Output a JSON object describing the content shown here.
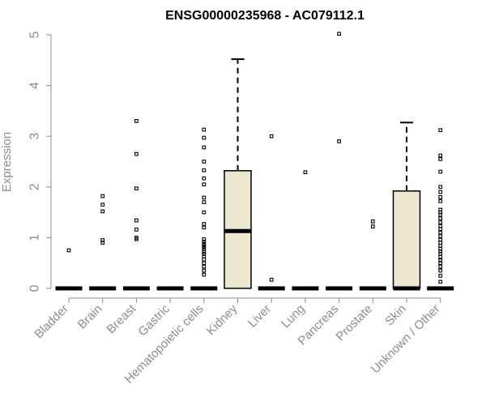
{
  "chart_data": {
    "type": "box",
    "title": "ENSG00000235968 - AC079112.1",
    "xlabel": "",
    "ylabel": "Expression",
    "ylim": [
      0,
      5
    ],
    "yticks": [
      0,
      1,
      2,
      3,
      4,
      5
    ],
    "categories": [
      "Bladder",
      "Brain",
      "Breast",
      "Gastric",
      "Hematopoietic cells",
      "Kidney",
      "Liver",
      "Lung",
      "Pancreas",
      "Prostate",
      "Skin",
      "Unknown / Other"
    ],
    "boxes": [
      {
        "min": 0,
        "q1": 0,
        "median": 0,
        "q3": 0,
        "max": 0,
        "outliers": [
          0.75
        ]
      },
      {
        "min": 0,
        "q1": 0,
        "median": 0,
        "q3": 0,
        "max": 0,
        "outliers": [
          0.9,
          0.95,
          1.52,
          1.65,
          1.82
        ]
      },
      {
        "min": 0,
        "q1": 0,
        "median": 0,
        "q3": 0,
        "max": 0,
        "outliers": [
          0.97,
          1.0,
          1.16,
          1.34,
          1.97,
          2.65,
          3.3
        ]
      },
      {
        "min": 0,
        "q1": 0,
        "median": 0,
        "q3": 0,
        "max": 0,
        "outliers": []
      },
      {
        "min": 0,
        "q1": 0,
        "median": 0,
        "q3": 0,
        "max": 0,
        "outliers": [
          0.27,
          0.35,
          0.43,
          0.5,
          0.57,
          0.63,
          0.68,
          0.72,
          0.77,
          0.81,
          0.85,
          0.88,
          0.92,
          0.97,
          1.2,
          1.27,
          1.5,
          1.7,
          1.79,
          2.05,
          2.17,
          2.33,
          2.5,
          2.78,
          2.97,
          3.13
        ]
      },
      {
        "min": 0,
        "q1": 0,
        "median": 1.13,
        "q3": 2.32,
        "max": 4.52,
        "outliers": []
      },
      {
        "min": 0,
        "q1": 0,
        "median": 0,
        "q3": 0,
        "max": 0,
        "outliers": [
          0.17,
          3.0
        ]
      },
      {
        "min": 0,
        "q1": 0,
        "median": 0,
        "q3": 0,
        "max": 0,
        "outliers": [
          2.29
        ]
      },
      {
        "min": 0,
        "q1": 0,
        "median": 0,
        "q3": 0,
        "max": 0,
        "outliers": [
          2.9,
          5.02
        ]
      },
      {
        "min": 0,
        "q1": 0,
        "median": 0,
        "q3": 0,
        "max": 0,
        "outliers": [
          1.22,
          1.32
        ]
      },
      {
        "min": 0,
        "q1": 0,
        "median": 0,
        "q3": 1.92,
        "max": 3.27,
        "outliers": []
      },
      {
        "min": 0,
        "q1": 0,
        "median": 0,
        "q3": 0,
        "max": 0,
        "outliers": [
          0.13,
          0.25,
          0.35,
          0.43,
          0.5,
          0.55,
          0.62,
          0.68,
          0.73,
          0.78,
          0.84,
          0.9,
          0.96,
          1.03,
          1.1,
          1.17,
          1.23,
          1.3,
          1.38,
          1.45,
          1.5,
          1.55,
          1.72,
          1.8,
          1.9,
          2.0,
          2.3,
          2.55,
          2.62,
          3.12
        ]
      }
    ],
    "box_fill": "#ede7cf",
    "box_stroke": "#000000",
    "axis_color": "#8c8c8c",
    "grid": false,
    "legend": "none"
  }
}
